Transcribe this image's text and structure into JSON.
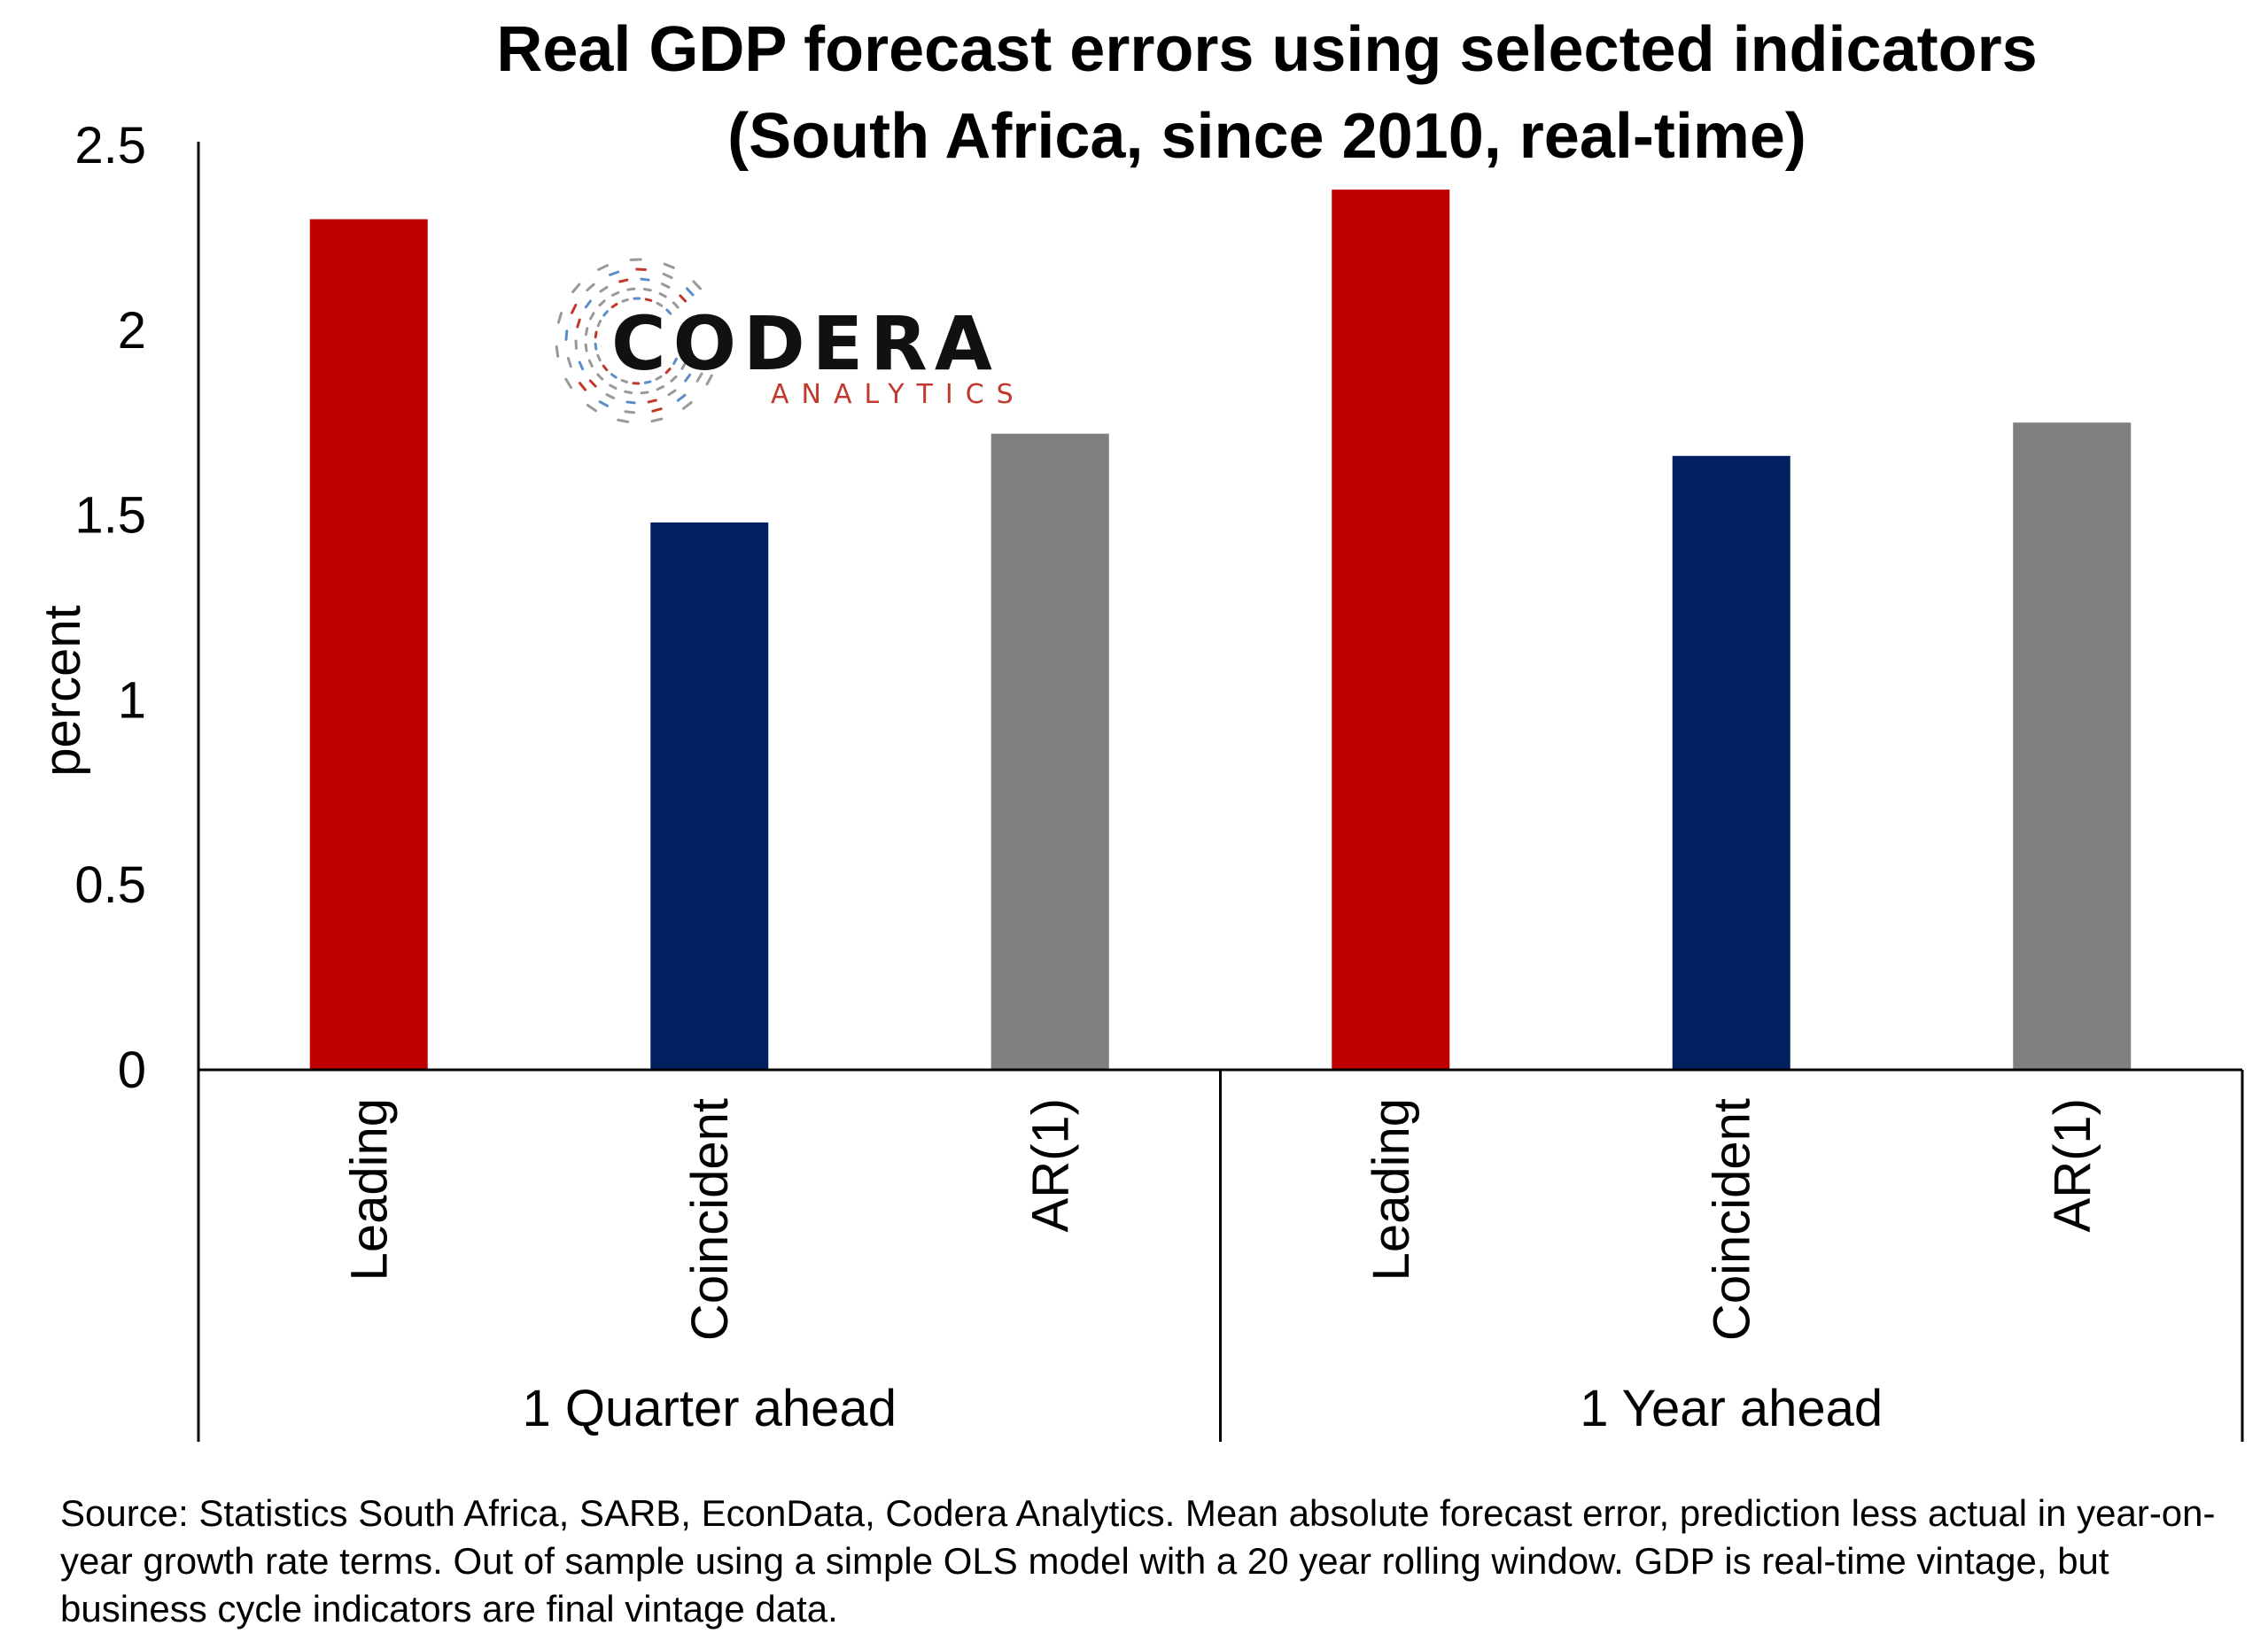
{
  "chart_data": {
    "type": "bar",
    "title_lines": [
      "Real GDP forecast errors using selected indicators",
      "(South Africa, since 2010, real-time)"
    ],
    "ylabel": "percent",
    "xlabel": "",
    "ylim": [
      0,
      2.5
    ],
    "yticks": [
      "0",
      "0.5",
      "1",
      "1.5",
      "2",
      "2.5"
    ],
    "grid": false,
    "legend": "none",
    "groups": [
      {
        "label": "1 Quarter ahead",
        "bars": [
          {
            "category": "Leading",
            "value": 2.3,
            "color": "#c00000"
          },
          {
            "category": "Coincident",
            "value": 1.48,
            "color": "#002060"
          },
          {
            "category": "AR(1)",
            "value": 1.72,
            "color": "#7f7f7f"
          }
        ]
      },
      {
        "label": "1 Year ahead",
        "bars": [
          {
            "category": "Leading",
            "value": 2.38,
            "color": "#c00000"
          },
          {
            "category": "Coincident",
            "value": 1.66,
            "color": "#002060"
          },
          {
            "category": "AR(1)",
            "value": 1.75,
            "color": "#7f7f7f"
          }
        ]
      }
    ]
  },
  "logo": {
    "name": "CODERA",
    "sub": "ANALYTICS",
    "main_color": "#111111",
    "sub_color": "#c0392b",
    "accent_colors": [
      "#c0392b",
      "#5b8ec9",
      "#999999"
    ]
  },
  "source": "Source: Statistics South Africa, SARB, EconData, Codera Analytics. Mean absolute forecast error, prediction less actual in year-on-year growth rate terms. Out of sample using a simple OLS model with a 20 year rolling window. GDP is real-time vintage, but business cycle indicators are final vintage data."
}
